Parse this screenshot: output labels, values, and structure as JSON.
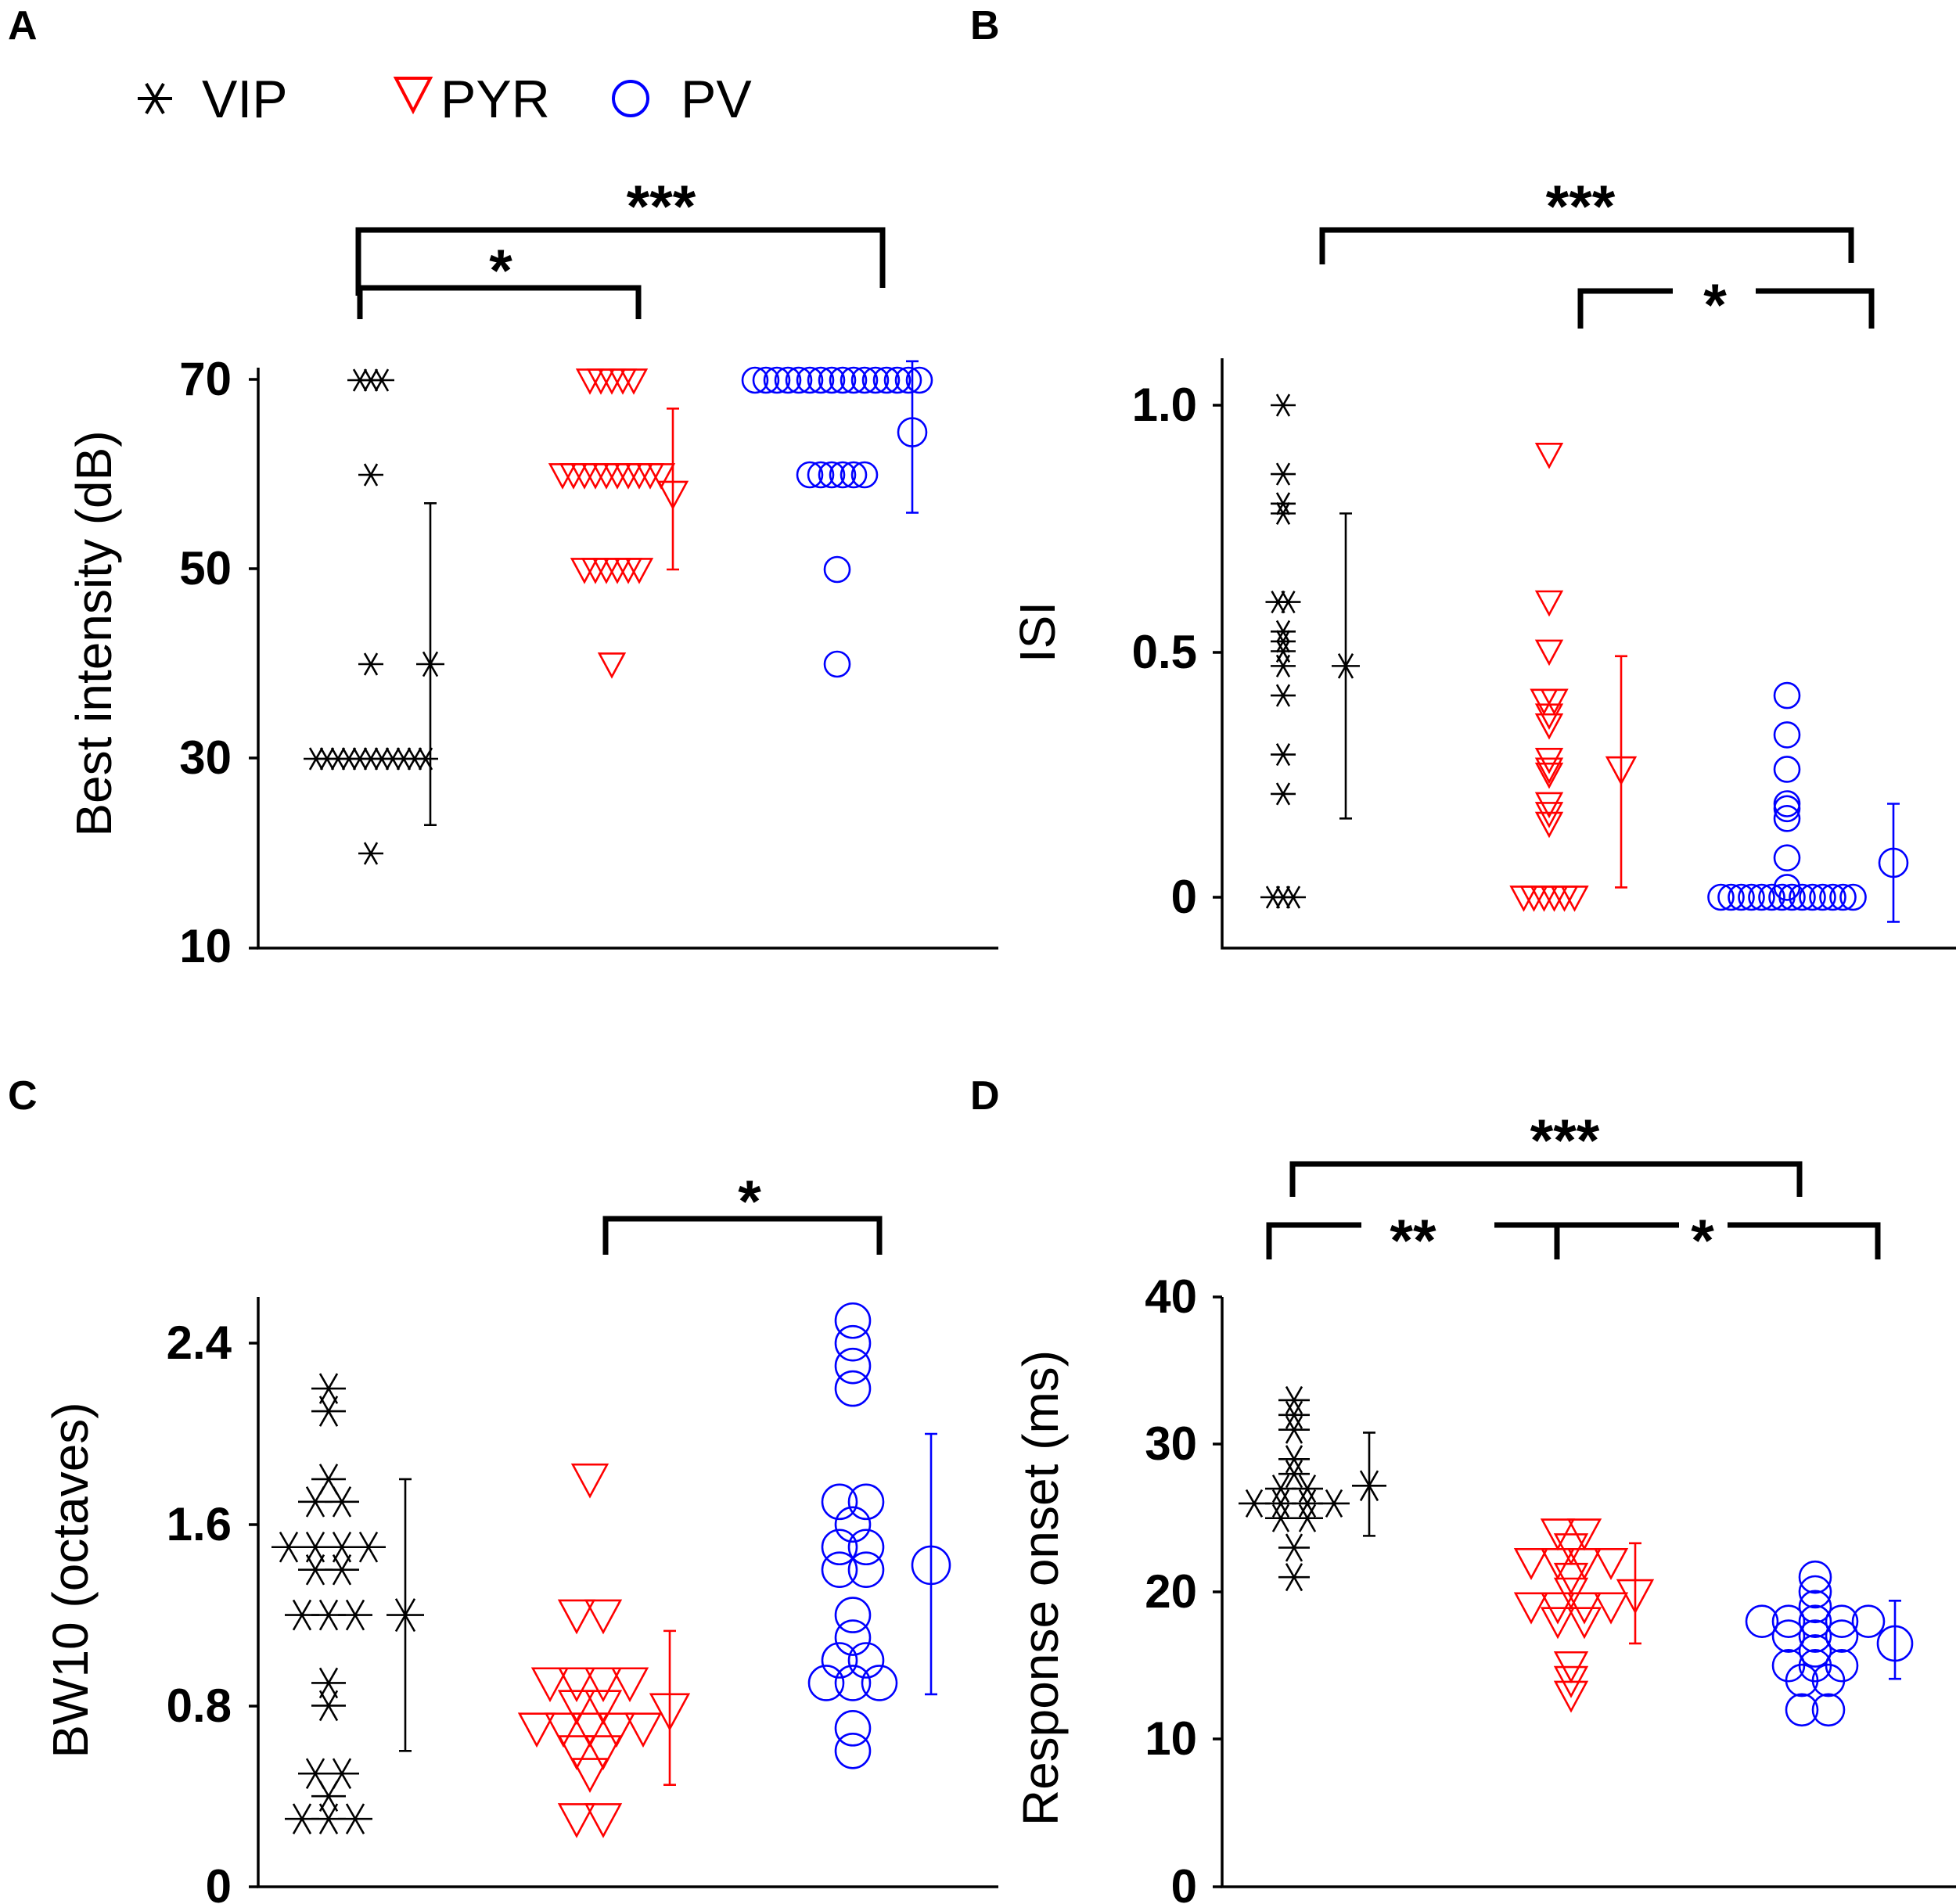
{
  "legend": [
    {
      "label": "VIP",
      "marker": "asterisk",
      "color": "#000000"
    },
    {
      "label": "PYR",
      "marker": "triangle-down",
      "color": "#ff0000"
    },
    {
      "label": "PV",
      "marker": "circle",
      "color": "#0000ff"
    }
  ],
  "chart_data": [
    {
      "panel": "A",
      "type": "scatter",
      "ylabel": "Best intensity (dB)",
      "ylim": [
        10,
        72
      ],
      "yticks": [
        "10",
        "30",
        "50",
        "70"
      ],
      "groups": [
        {
          "name": "VIP",
          "values": [
            70,
            70,
            70,
            60,
            40,
            30,
            30,
            30,
            30,
            30,
            30,
            30,
            30,
            30,
            30,
            30,
            20
          ],
          "mean": 40,
          "err_low": 23,
          "err_high": 57
        },
        {
          "name": "PYR",
          "values": [
            70,
            70,
            70,
            70,
            70,
            60,
            60,
            60,
            60,
            60,
            60,
            60,
            60,
            60,
            60,
            50,
            50,
            50,
            50,
            50,
            50,
            40
          ],
          "mean": 58,
          "err_low": 50,
          "err_high": 67
        },
        {
          "name": "PV",
          "values": [
            70,
            70,
            70,
            70,
            70,
            70,
            70,
            70,
            70,
            70,
            70,
            70,
            70,
            70,
            70,
            70,
            60,
            60,
            60,
            60,
            60,
            60,
            50,
            40
          ],
          "mean": 64.5,
          "err_low": 56,
          "err_high": 72
        }
      ],
      "significance": [
        {
          "from": "VIP",
          "to": "PYR",
          "label": "*"
        },
        {
          "from": "VIP",
          "to": "PV",
          "label": "***"
        }
      ]
    },
    {
      "panel": "B",
      "type": "scatter",
      "ylabel": "ISI",
      "ylim": [
        -0.1,
        1.08
      ],
      "yticks": [
        "0",
        "0.5",
        "1.0"
      ],
      "groups": [
        {
          "name": "VIP",
          "values": [
            1.0,
            0.86,
            0.8,
            0.78,
            0.6,
            0.6,
            0.54,
            0.52,
            0.5,
            0.47,
            0.41,
            0.29,
            0.21,
            0.0,
            0.0,
            0.0
          ],
          "mean": 0.47,
          "err_low": 0.16,
          "err_high": 0.78
        },
        {
          "name": "PYR",
          "values": [
            0.9,
            0.6,
            0.5,
            0.4,
            0.4,
            0.37,
            0.35,
            0.28,
            0.26,
            0.25,
            0.19,
            0.17,
            0.15,
            0.0,
            0.0,
            0.0,
            0.0,
            0.0,
            0.0
          ],
          "mean": 0.26,
          "err_low": 0.02,
          "err_high": 0.49
        },
        {
          "name": "PV",
          "values": [
            0.41,
            0.33,
            0.26,
            0.19,
            0.18,
            0.16,
            0.08,
            0.02,
            0.0,
            0.0,
            0.0,
            0.0,
            0.0,
            0.0,
            0.0,
            0.0,
            0.0,
            0.0,
            0.0,
            0.0,
            0.0,
            0.0
          ],
          "mean": 0.07,
          "err_low": -0.05,
          "err_high": 0.19
        }
      ],
      "significance": [
        {
          "from": "VIP",
          "to": "PV",
          "label": "***"
        },
        {
          "from": "PYR",
          "to": "PV",
          "label": "*"
        }
      ]
    },
    {
      "panel": "C",
      "type": "scatter",
      "ylabel": "BW10 (octaves)",
      "ylim": [
        0,
        2.6
      ],
      "yticks": [
        "0",
        "0.8",
        "1.6",
        "2.4"
      ],
      "groups": [
        {
          "name": "VIP",
          "values": [
            2.2,
            2.1,
            1.8,
            1.7,
            1.7,
            1.5,
            1.5,
            1.5,
            1.5,
            1.4,
            1.4,
            1.2,
            1.2,
            1.2,
            0.9,
            0.8,
            0.5,
            0.5,
            0.4,
            0.3,
            0.3,
            0.3
          ],
          "mean": 1.2,
          "err_low": 0.6,
          "err_high": 1.8
        },
        {
          "name": "PYR",
          "values": [
            1.8,
            1.2,
            1.2,
            0.9,
            0.9,
            0.9,
            0.9,
            0.8,
            0.8,
            0.7,
            0.7,
            0.7,
            0.7,
            0.7,
            0.6,
            0.6,
            0.5,
            0.3,
            0.3
          ],
          "mean": 0.78,
          "err_low": 0.45,
          "err_high": 1.13
        },
        {
          "name": "PV",
          "values": [
            2.5,
            2.4,
            2.3,
            2.2,
            1.7,
            1.7,
            1.6,
            1.5,
            1.5,
            1.4,
            1.4,
            1.2,
            1.1,
            1.0,
            1.0,
            0.9,
            0.9,
            0.9,
            0.7,
            0.6
          ],
          "mean": 1.42,
          "err_low": 0.85,
          "err_high": 2.0
        }
      ],
      "significance": [
        {
          "from": "PYR",
          "to": "PV",
          "label": "*"
        }
      ]
    },
    {
      "panel": "D",
      "type": "scatter",
      "ylabel": "Response onset (ms)",
      "ylim": [
        0,
        40
      ],
      "yticks": [
        "0",
        "10",
        "20",
        "30",
        "40"
      ],
      "groups": [
        {
          "name": "VIP",
          "values": [
            33,
            32,
            31,
            29,
            28,
            27,
            27,
            26,
            26,
            26,
            26,
            25,
            25,
            23,
            21
          ],
          "mean": 27.2,
          "err_low": 23.8,
          "err_high": 30.8
        },
        {
          "name": "PYR",
          "values": [
            24,
            24,
            23,
            22,
            22,
            22,
            22,
            21,
            20,
            19,
            19,
            19,
            19,
            18,
            18,
            15,
            14,
            13
          ],
          "mean": 19.8,
          "err_low": 16.5,
          "err_high": 23.3
        },
        {
          "name": "PV",
          "values": [
            21,
            20,
            19,
            18,
            18,
            18,
            18,
            18,
            17,
            17,
            17,
            16,
            15,
            15,
            15,
            14,
            14,
            12,
            12
          ],
          "mean": 16.5,
          "err_low": 14.1,
          "err_high": 19.4
        }
      ],
      "significance": [
        {
          "from": "VIP",
          "to": "PV",
          "label": "***"
        },
        {
          "from": "VIP",
          "to": "PYR",
          "label": "**"
        },
        {
          "from": "PYR",
          "to": "PV",
          "label": "*"
        }
      ]
    }
  ]
}
